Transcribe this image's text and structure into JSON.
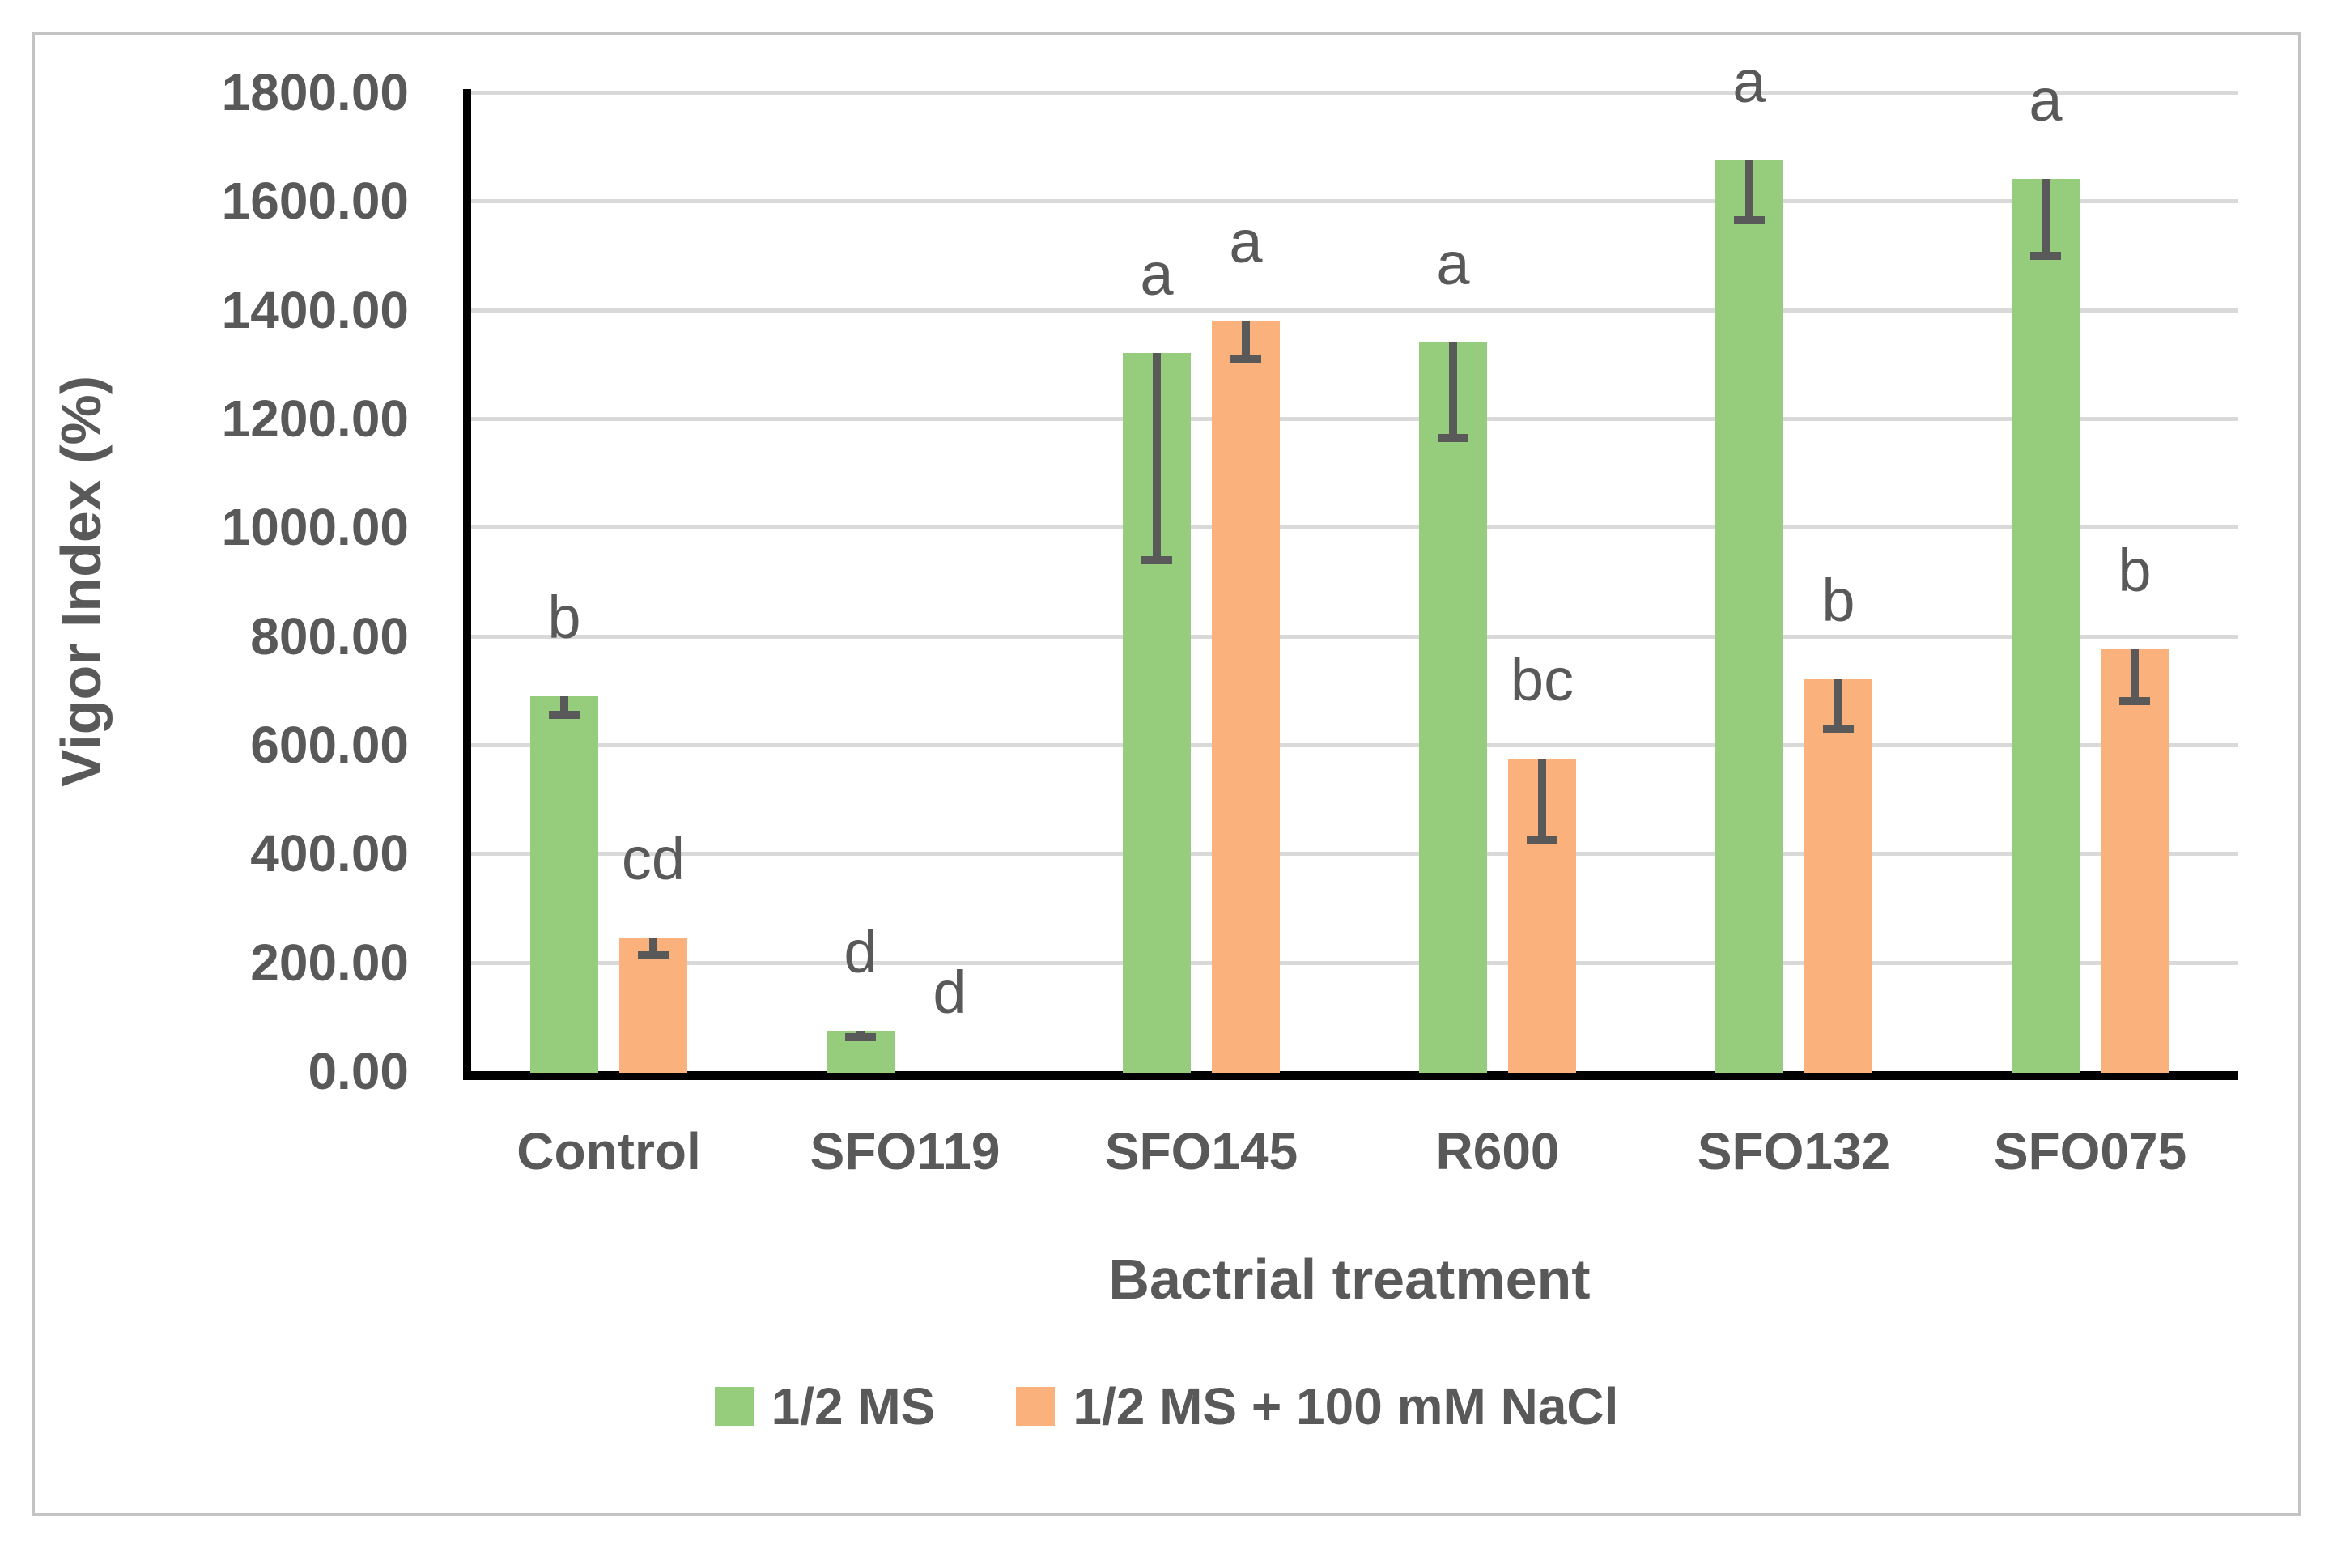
{
  "chart_data": {
    "type": "bar",
    "title": "",
    "xlabel": "Bactrial treatment",
    "ylabel": "Vigor Index (%)",
    "ylim": [
      0,
      1800
    ],
    "ytick_step": 200,
    "ytick_labels": [
      "0.00",
      "200.00",
      "400.00",
      "600.00",
      "800.00",
      "1000.00",
      "1200.00",
      "1400.00",
      "1600.00",
      "1800.00"
    ],
    "grid": true,
    "grid_color": "#d9d9d9",
    "axis_color": "#000000",
    "text_color": "#595959",
    "error_bar_color": "#595959",
    "legend_position": "bottom",
    "categories": [
      "Control",
      "SFO119",
      "SFO145",
      "R600",
      "SFO132",
      "SFO075"
    ],
    "series": [
      {
        "name": "1/2 MS",
        "color": "#95cd7c",
        "values": [
          690,
          75,
          1320,
          1340,
          1675,
          1640
        ],
        "error_minus": [
          35,
          12,
          380,
          175,
          110,
          140
        ],
        "letters": [
          "b",
          "d",
          "a",
          "a",
          "a",
          "a"
        ]
      },
      {
        "name": "1/2 MS + 100 mM NaCl",
        "color": "#fab17c",
        "values": [
          245,
          0,
          1380,
          575,
          720,
          775
        ],
        "error_minus": [
          32,
          0,
          70,
          150,
          90,
          95
        ],
        "letters": [
          "cd",
          "d",
          "a",
          "bc",
          "b",
          "b"
        ]
      }
    ]
  }
}
